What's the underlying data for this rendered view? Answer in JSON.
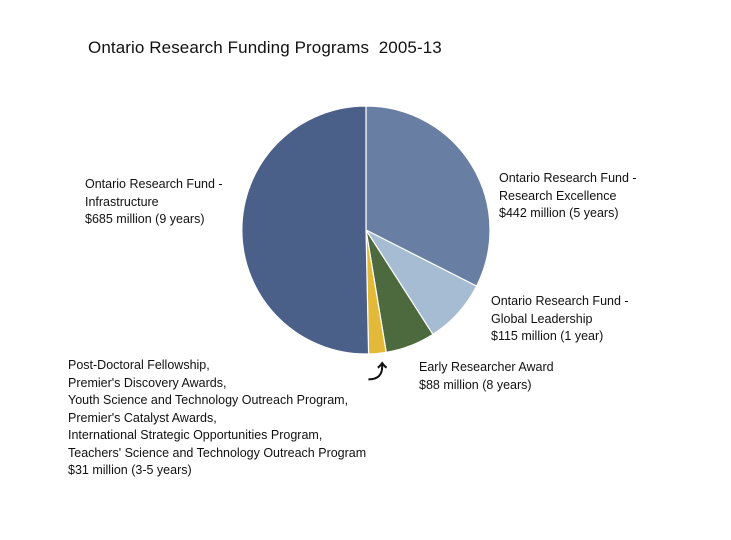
{
  "chart_data": {
    "type": "pie",
    "title": "Ontario Research Funding Programs  2005-13",
    "start": "12 o'clock",
    "direction": "clockwise",
    "slices": [
      {
        "lines": [
          "Ontario Research Fund -",
          "Research Excellence",
          "$442 million  (5 years)"
        ],
        "value": 442,
        "color": "#687ea2"
      },
      {
        "lines": [
          "Ontario Research Fund -",
          "Global Leadership",
          "$115 million  (1 year)"
        ],
        "value": 115,
        "color": "#a6bcd3"
      },
      {
        "lines": [
          "Early Researcher Award",
          "$88 million (8 years)"
        ],
        "value": 88,
        "color": "#4d6a3e"
      },
      {
        "lines": [
          "Post-Doctoral Fellowship,",
          "Premier's Discovery Awards,",
          "Youth Science and Technology Outreach Program,",
          "Premier's Catalyst Awards,",
          "International Strategic Opportunities Program,",
          "Teachers' Science and Technology Outreach Program",
          "$31 million  (3-5 years)"
        ],
        "value": 31,
        "color": "#e3b93a"
      },
      {
        "lines": [
          "Ontario Research Fund -",
          "Infrastructure",
          "$685 million  (9 years)"
        ],
        "value": 685,
        "color": "#4b6089"
      }
    ],
    "callout_arrow": "⤴"
  }
}
